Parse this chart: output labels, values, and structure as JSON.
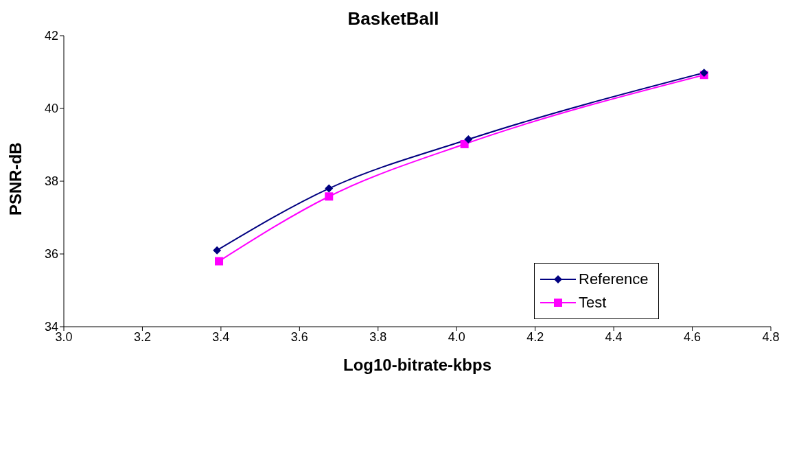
{
  "chart_data": {
    "type": "line",
    "title": "BasketBall",
    "xlabel": "Log10-bitrate-kbps",
    "ylabel": "PSNR-dB",
    "series": [
      {
        "name": "Reference",
        "color": "#000080",
        "marker": "diamond",
        "x": [
          3.39,
          3.675,
          4.03,
          4.63
        ],
        "values": [
          36.1,
          37.8,
          39.15,
          40.98
        ]
      },
      {
        "name": "Test",
        "color": "#ff00ff",
        "marker": "square",
        "x": [
          3.395,
          3.675,
          4.02,
          4.63
        ],
        "values": [
          35.8,
          37.58,
          39.02,
          40.92
        ]
      }
    ],
    "xlim": [
      3.0,
      4.8
    ],
    "xticks": [
      {
        "value": 3.0,
        "label": "3.0"
      },
      {
        "value": 3.2,
        "label": "3.2"
      },
      {
        "value": 3.4,
        "label": "3.4"
      },
      {
        "value": 3.6,
        "label": "3.6"
      },
      {
        "value": 3.8,
        "label": "3.8"
      },
      {
        "value": 4.0,
        "label": "4.0"
      },
      {
        "value": 4.2,
        "label": "4.2"
      },
      {
        "value": 4.4,
        "label": "4.4"
      },
      {
        "value": 4.6,
        "label": "4.6"
      },
      {
        "value": 4.8,
        "label": "4.8"
      }
    ],
    "ylim": [
      34,
      42
    ],
    "yticks": [
      34,
      36,
      38,
      40,
      42
    ],
    "grid": false,
    "legend": "right",
    "line_style": "solid"
  }
}
